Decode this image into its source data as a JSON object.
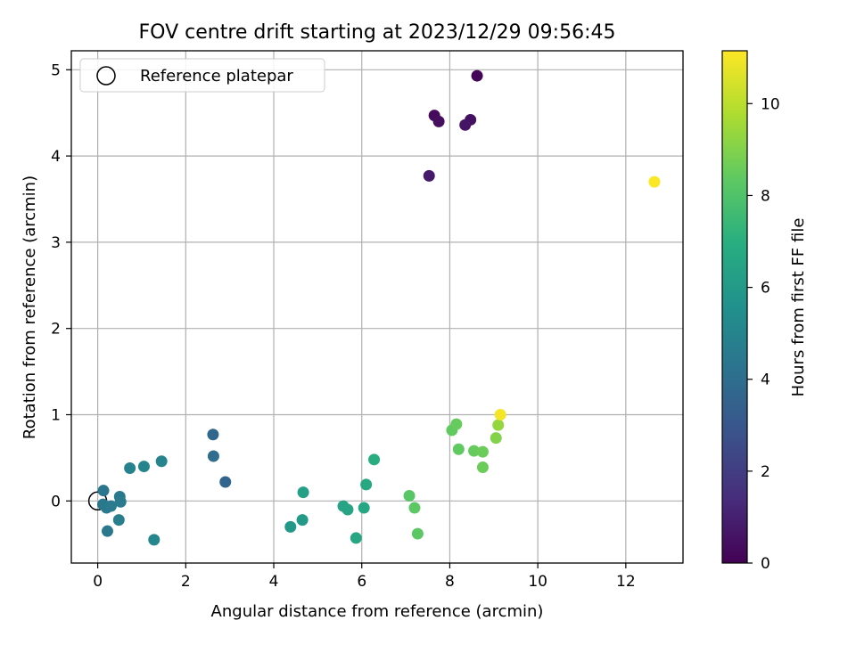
{
  "chart_data": {
    "type": "scatter",
    "title": "FOV centre drift starting at 2023/12/29 09:56:45",
    "xlabel": "Angular distance from reference (arcmin)",
    "ylabel": "Rotation from reference (arcmin)",
    "xlim": [
      -0.6,
      13.3
    ],
    "ylim": [
      -0.72,
      5.22
    ],
    "xticks": [
      "0",
      "2",
      "4",
      "6",
      "8",
      "10",
      "12"
    ],
    "yticks": [
      "0",
      "1",
      "2",
      "3",
      "4",
      "5"
    ],
    "grid": true,
    "legend": {
      "position": "top-left",
      "entries": [
        "Reference platepar"
      ]
    },
    "reference_point": {
      "x": 0,
      "y": 0,
      "label": "Reference platepar"
    },
    "colorbar": {
      "label": "Hours from first FF file",
      "range": [
        0,
        11.15
      ],
      "ticks": [
        "0",
        "2",
        "4",
        "6",
        "8",
        "10"
      ],
      "colormap": "viridis"
    },
    "series": [
      {
        "points": [
          {
            "x": 8.62,
            "y": 4.93,
            "c": 0.1
          },
          {
            "x": 7.65,
            "y": 4.47,
            "c": 0.3
          },
          {
            "x": 7.75,
            "y": 4.4,
            "c": 0.4
          },
          {
            "x": 8.47,
            "y": 4.42,
            "c": 0.5
          },
          {
            "x": 8.35,
            "y": 4.36,
            "c": 0.6
          },
          {
            "x": 7.53,
            "y": 3.77,
            "c": 0.8
          },
          {
            "x": 2.62,
            "y": 0.77,
            "c": 3.7
          },
          {
            "x": 2.63,
            "y": 0.52,
            "c": 3.9
          },
          {
            "x": 2.9,
            "y": 0.22,
            "c": 3.6
          },
          {
            "x": 0.13,
            "y": 0.12,
            "c": 4.3
          },
          {
            "x": 0.12,
            "y": -0.04,
            "c": 4.4
          },
          {
            "x": 0.2,
            "y": -0.08,
            "c": 4.5
          },
          {
            "x": 0.3,
            "y": -0.06,
            "c": 4.6
          },
          {
            "x": 0.22,
            "y": -0.35,
            "c": 4.4
          },
          {
            "x": 0.5,
            "y": 0.05,
            "c": 4.5
          },
          {
            "x": 0.52,
            "y": -0.01,
            "c": 4.6
          },
          {
            "x": 0.48,
            "y": -0.22,
            "c": 4.7
          },
          {
            "x": 0.73,
            "y": 0.38,
            "c": 4.9
          },
          {
            "x": 1.05,
            "y": 0.4,
            "c": 5.0
          },
          {
            "x": 1.45,
            "y": 0.46,
            "c": 5.0
          },
          {
            "x": 1.28,
            "y": -0.45,
            "c": 5.1
          },
          {
            "x": 4.38,
            "y": -0.3,
            "c": 5.9
          },
          {
            "x": 4.65,
            "y": -0.22,
            "c": 6.0
          },
          {
            "x": 4.67,
            "y": 0.1,
            "c": 6.3
          },
          {
            "x": 5.58,
            "y": -0.06,
            "c": 6.5
          },
          {
            "x": 5.68,
            "y": -0.1,
            "c": 6.5
          },
          {
            "x": 5.87,
            "y": -0.43,
            "c": 6.6
          },
          {
            "x": 6.05,
            "y": -0.08,
            "c": 6.6
          },
          {
            "x": 6.1,
            "y": 0.19,
            "c": 6.7
          },
          {
            "x": 6.28,
            "y": 0.48,
            "c": 6.9
          },
          {
            "x": 7.08,
            "y": 0.06,
            "c": 8.2
          },
          {
            "x": 7.2,
            "y": -0.08,
            "c": 8.3
          },
          {
            "x": 7.27,
            "y": -0.38,
            "c": 8.3
          },
          {
            "x": 8.05,
            "y": 0.82,
            "c": 8.4
          },
          {
            "x": 8.15,
            "y": 0.89,
            "c": 8.5
          },
          {
            "x": 8.2,
            "y": 0.6,
            "c": 8.4
          },
          {
            "x": 8.55,
            "y": 0.58,
            "c": 8.5
          },
          {
            "x": 8.75,
            "y": 0.57,
            "c": 8.6
          },
          {
            "x": 8.75,
            "y": 0.39,
            "c": 8.6
          },
          {
            "x": 9.05,
            "y": 0.73,
            "c": 9.0
          },
          {
            "x": 9.1,
            "y": 0.88,
            "c": 9.3
          },
          {
            "x": 9.15,
            "y": 1.0,
            "c": 11.0
          },
          {
            "x": 12.65,
            "y": 3.7,
            "c": 11.1
          }
        ]
      }
    ]
  }
}
